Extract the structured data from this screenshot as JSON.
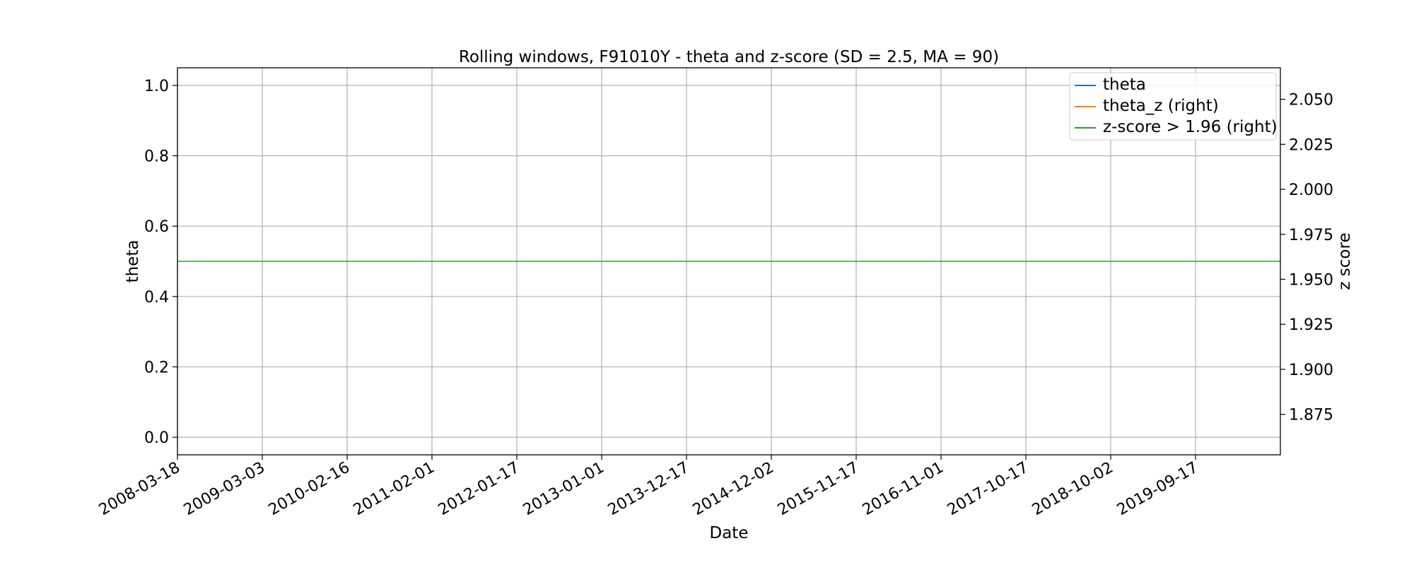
{
  "chart_data": {
    "type": "line",
    "title": "Rolling windows, F91010Y - theta and z-score (SD = 2.5, MA = 90)",
    "xlabel": "Date",
    "ylabel": "theta",
    "ylabel_right": "z score",
    "x_tick_labels": [
      "2008-03-18",
      "2009-03-03",
      "2010-02-16",
      "2011-02-01",
      "2012-01-17",
      "2013-01-01",
      "2013-12-17",
      "2014-12-02",
      "2015-11-17",
      "2016-11-01",
      "2017-10-17",
      "2018-10-02",
      "2019-09-17"
    ],
    "xlim": [
      "2008-03-18",
      "2020-09-01"
    ],
    "ylim": [
      -0.05,
      1.05
    ],
    "y_ticks": [
      0.0,
      0.2,
      0.4,
      0.6,
      0.8,
      1.0
    ],
    "y_tick_labels": [
      "0.0",
      "0.2",
      "0.4",
      "0.6",
      "0.8",
      "1.0"
    ],
    "ylim_right": [
      1.8525,
      2.0675
    ],
    "y_ticks_right": [
      1.875,
      1.9,
      1.925,
      1.95,
      1.975,
      2.0,
      2.025,
      2.05
    ],
    "y_tick_labels_right": [
      "1.875",
      "1.900",
      "1.925",
      "1.950",
      "1.975",
      "2.000",
      "2.025",
      "2.050"
    ],
    "grid": true,
    "legend_position": "top-right",
    "series": [
      {
        "name": "theta",
        "axis": "left",
        "color": "#1f77b4",
        "x": [],
        "y": []
      },
      {
        "name": "theta_z (right)",
        "axis": "right",
        "color": "#ff7f0e",
        "x": [],
        "y": []
      },
      {
        "name": "z-score > 1.96 (right)",
        "axis": "right",
        "color": "#2ca02c",
        "x": [
          "2008-03-18",
          "2020-09-01"
        ],
        "y": [
          1.96,
          1.96
        ]
      }
    ]
  }
}
